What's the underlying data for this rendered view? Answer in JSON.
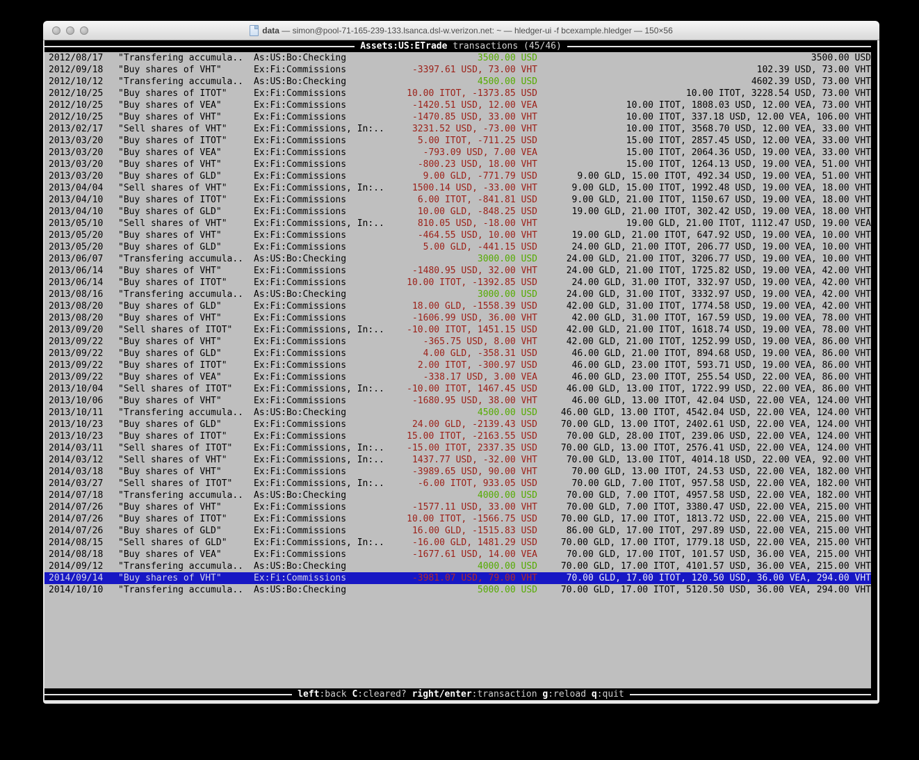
{
  "window": {
    "title_name": "data",
    "title_rest": " — simon@pool-71-165-239-133.lsanca.dsl-w.verizon.net: ~ — hledger-ui -f bcexample.hledger — 150×56"
  },
  "header": {
    "account": "Assets:US:ETrade",
    "rest": "transactions (45/46)"
  },
  "footer": {
    "keys": [
      {
        "key": "left",
        "desc": ":back "
      },
      {
        "key": "C",
        "desc": ":cleared? "
      },
      {
        "key": "right/enter",
        "desc": ":transaction "
      },
      {
        "key": "g",
        "desc": ":reload "
      },
      {
        "key": "q",
        "desc": ":quit"
      }
    ]
  },
  "colors": {
    "terminal_bg": "#bfbfbf",
    "bar_bg": "#000000",
    "amount_negative": "#9c2119",
    "amount_positive": "#55ab00",
    "selected_bg": "#1717c4",
    "desktop_bg": "#000000"
  },
  "transactions": [
    {
      "date": "2012/08/17",
      "desc": "\"Transfering accumula..",
      "acct": "As:US:Bo:Checking",
      "amt": "3500.00 USD",
      "amt_color": "green",
      "bal": "3500.00 USD",
      "selected": false
    },
    {
      "date": "2012/09/18",
      "desc": "\"Buy shares of VHT\"",
      "acct": "Ex:Fi:Commissions",
      "amt": "-3397.61 USD, 73.00 VHT",
      "amt_color": "red",
      "bal": "102.39 USD, 73.00 VHT",
      "selected": false
    },
    {
      "date": "2012/10/12",
      "desc": "\"Transfering accumula..",
      "acct": "As:US:Bo:Checking",
      "amt": "4500.00 USD",
      "amt_color": "green",
      "bal": "4602.39 USD, 73.00 VHT",
      "selected": false
    },
    {
      "date": "2012/10/25",
      "desc": "\"Buy shares of ITOT\"",
      "acct": "Ex:Fi:Commissions",
      "amt": "10.00 ITOT, -1373.85 USD",
      "amt_color": "red",
      "bal": "10.00 ITOT, 3228.54 USD, 73.00 VHT",
      "selected": false
    },
    {
      "date": "2012/10/25",
      "desc": "\"Buy shares of VEA\"",
      "acct": "Ex:Fi:Commissions",
      "amt": "-1420.51 USD, 12.00 VEA",
      "amt_color": "red",
      "bal": "10.00 ITOT, 1808.03 USD, 12.00 VEA, 73.00 VHT",
      "selected": false
    },
    {
      "date": "2012/10/25",
      "desc": "\"Buy shares of VHT\"",
      "acct": "Ex:Fi:Commissions",
      "amt": "-1470.85 USD, 33.00 VHT",
      "amt_color": "red",
      "bal": "10.00 ITOT, 337.18 USD, 12.00 VEA, 106.00 VHT",
      "selected": false
    },
    {
      "date": "2013/02/17",
      "desc": "\"Sell shares of VHT\"",
      "acct": "Ex:Fi:Commissions, In:..",
      "amt": "3231.52 USD, -73.00 VHT",
      "amt_color": "red",
      "bal": "10.00 ITOT, 3568.70 USD, 12.00 VEA, 33.00 VHT",
      "selected": false
    },
    {
      "date": "2013/03/20",
      "desc": "\"Buy shares of ITOT\"",
      "acct": "Ex:Fi:Commissions",
      "amt": "5.00 ITOT, -711.25 USD",
      "amt_color": "red",
      "bal": "15.00 ITOT, 2857.45 USD, 12.00 VEA, 33.00 VHT",
      "selected": false
    },
    {
      "date": "2013/03/20",
      "desc": "\"Buy shares of VEA\"",
      "acct": "Ex:Fi:Commissions",
      "amt": "-793.09 USD, 7.00 VEA",
      "amt_color": "red",
      "bal": "15.00 ITOT, 2064.36 USD, 19.00 VEA, 33.00 VHT",
      "selected": false
    },
    {
      "date": "2013/03/20",
      "desc": "\"Buy shares of VHT\"",
      "acct": "Ex:Fi:Commissions",
      "amt": "-800.23 USD, 18.00 VHT",
      "amt_color": "red",
      "bal": "15.00 ITOT, 1264.13 USD, 19.00 VEA, 51.00 VHT",
      "selected": false
    },
    {
      "date": "2013/03/20",
      "desc": "\"Buy shares of GLD\"",
      "acct": "Ex:Fi:Commissions",
      "amt": "9.00 GLD, -771.79 USD",
      "amt_color": "red",
      "bal": "9.00 GLD, 15.00 ITOT, 492.34 USD, 19.00 VEA, 51.00 VHT",
      "selected": false
    },
    {
      "date": "2013/04/04",
      "desc": "\"Sell shares of VHT\"",
      "acct": "Ex:Fi:Commissions, In:..",
      "amt": "1500.14 USD, -33.00 VHT",
      "amt_color": "red",
      "bal": "9.00 GLD, 15.00 ITOT, 1992.48 USD, 19.00 VEA, 18.00 VHT",
      "selected": false
    },
    {
      "date": "2013/04/10",
      "desc": "\"Buy shares of ITOT\"",
      "acct": "Ex:Fi:Commissions",
      "amt": "6.00 ITOT, -841.81 USD",
      "amt_color": "red",
      "bal": "9.00 GLD, 21.00 ITOT, 1150.67 USD, 19.00 VEA, 18.00 VHT",
      "selected": false
    },
    {
      "date": "2013/04/10",
      "desc": "\"Buy shares of GLD\"",
      "acct": "Ex:Fi:Commissions",
      "amt": "10.00 GLD, -848.25 USD",
      "amt_color": "red",
      "bal": "19.00 GLD, 21.00 ITOT, 302.42 USD, 19.00 VEA, 18.00 VHT",
      "selected": false
    },
    {
      "date": "2013/05/10",
      "desc": "\"Sell shares of VHT\"",
      "acct": "Ex:Fi:Commissions, In:..",
      "amt": "810.05 USD, -18.00 VHT",
      "amt_color": "red",
      "bal": "19.00 GLD, 21.00 ITOT, 1112.47 USD, 19.00 VEA",
      "selected": false
    },
    {
      "date": "2013/05/20",
      "desc": "\"Buy shares of VHT\"",
      "acct": "Ex:Fi:Commissions",
      "amt": "-464.55 USD, 10.00 VHT",
      "amt_color": "red",
      "bal": "19.00 GLD, 21.00 ITOT, 647.92 USD, 19.00 VEA, 10.00 VHT",
      "selected": false
    },
    {
      "date": "2013/05/20",
      "desc": "\"Buy shares of GLD\"",
      "acct": "Ex:Fi:Commissions",
      "amt": "5.00 GLD, -441.15 USD",
      "amt_color": "red",
      "bal": "24.00 GLD, 21.00 ITOT, 206.77 USD, 19.00 VEA, 10.00 VHT",
      "selected": false
    },
    {
      "date": "2013/06/07",
      "desc": "\"Transfering accumula..",
      "acct": "As:US:Bo:Checking",
      "amt": "3000.00 USD",
      "amt_color": "green",
      "bal": "24.00 GLD, 21.00 ITOT, 3206.77 USD, 19.00 VEA, 10.00 VHT",
      "selected": false
    },
    {
      "date": "2013/06/14",
      "desc": "\"Buy shares of VHT\"",
      "acct": "Ex:Fi:Commissions",
      "amt": "-1480.95 USD, 32.00 VHT",
      "amt_color": "red",
      "bal": "24.00 GLD, 21.00 ITOT, 1725.82 USD, 19.00 VEA, 42.00 VHT",
      "selected": false
    },
    {
      "date": "2013/06/14",
      "desc": "\"Buy shares of ITOT\"",
      "acct": "Ex:Fi:Commissions",
      "amt": "10.00 ITOT, -1392.85 USD",
      "amt_color": "red",
      "bal": "24.00 GLD, 31.00 ITOT, 332.97 USD, 19.00 VEA, 42.00 VHT",
      "selected": false
    },
    {
      "date": "2013/08/16",
      "desc": "\"Transfering accumula..",
      "acct": "As:US:Bo:Checking",
      "amt": "3000.00 USD",
      "amt_color": "green",
      "bal": "24.00 GLD, 31.00 ITOT, 3332.97 USD, 19.00 VEA, 42.00 VHT",
      "selected": false
    },
    {
      "date": "2013/08/20",
      "desc": "\"Buy shares of GLD\"",
      "acct": "Ex:Fi:Commissions",
      "amt": "18.00 GLD, -1558.39 USD",
      "amt_color": "red",
      "bal": "42.00 GLD, 31.00 ITOT, 1774.58 USD, 19.00 VEA, 42.00 VHT",
      "selected": false
    },
    {
      "date": "2013/08/20",
      "desc": "\"Buy shares of VHT\"",
      "acct": "Ex:Fi:Commissions",
      "amt": "-1606.99 USD, 36.00 VHT",
      "amt_color": "red",
      "bal": "42.00 GLD, 31.00 ITOT, 167.59 USD, 19.00 VEA, 78.00 VHT",
      "selected": false
    },
    {
      "date": "2013/09/20",
      "desc": "\"Sell shares of ITOT\"",
      "acct": "Ex:Fi:Commissions, In:..",
      "amt": "-10.00 ITOT, 1451.15 USD",
      "amt_color": "red",
      "bal": "42.00 GLD, 21.00 ITOT, 1618.74 USD, 19.00 VEA, 78.00 VHT",
      "selected": false
    },
    {
      "date": "2013/09/22",
      "desc": "\"Buy shares of VHT\"",
      "acct": "Ex:Fi:Commissions",
      "amt": "-365.75 USD, 8.00 VHT",
      "amt_color": "red",
      "bal": "42.00 GLD, 21.00 ITOT, 1252.99 USD, 19.00 VEA, 86.00 VHT",
      "selected": false
    },
    {
      "date": "2013/09/22",
      "desc": "\"Buy shares of GLD\"",
      "acct": "Ex:Fi:Commissions",
      "amt": "4.00 GLD, -358.31 USD",
      "amt_color": "red",
      "bal": "46.00 GLD, 21.00 ITOT, 894.68 USD, 19.00 VEA, 86.00 VHT",
      "selected": false
    },
    {
      "date": "2013/09/22",
      "desc": "\"Buy shares of ITOT\"",
      "acct": "Ex:Fi:Commissions",
      "amt": "2.00 ITOT, -300.97 USD",
      "amt_color": "red",
      "bal": "46.00 GLD, 23.00 ITOT, 593.71 USD, 19.00 VEA, 86.00 VHT",
      "selected": false
    },
    {
      "date": "2013/09/22",
      "desc": "\"Buy shares of VEA\"",
      "acct": "Ex:Fi:Commissions",
      "amt": "-338.17 USD, 3.00 VEA",
      "amt_color": "red",
      "bal": "46.00 GLD, 23.00 ITOT, 255.54 USD, 22.00 VEA, 86.00 VHT",
      "selected": false
    },
    {
      "date": "2013/10/04",
      "desc": "\"Sell shares of ITOT\"",
      "acct": "Ex:Fi:Commissions, In:..",
      "amt": "-10.00 ITOT, 1467.45 USD",
      "amt_color": "red",
      "bal": "46.00 GLD, 13.00 ITOT, 1722.99 USD, 22.00 VEA, 86.00 VHT",
      "selected": false
    },
    {
      "date": "2013/10/06",
      "desc": "\"Buy shares of VHT\"",
      "acct": "Ex:Fi:Commissions",
      "amt": "-1680.95 USD, 38.00 VHT",
      "amt_color": "red",
      "bal": "46.00 GLD, 13.00 ITOT, 42.04 USD, 22.00 VEA, 124.00 VHT",
      "selected": false
    },
    {
      "date": "2013/10/11",
      "desc": "\"Transfering accumula..",
      "acct": "As:US:Bo:Checking",
      "amt": "4500.00 USD",
      "amt_color": "green",
      "bal": "46.00 GLD, 13.00 ITOT, 4542.04 USD, 22.00 VEA, 124.00 VHT",
      "selected": false
    },
    {
      "date": "2013/10/23",
      "desc": "\"Buy shares of GLD\"",
      "acct": "Ex:Fi:Commissions",
      "amt": "24.00 GLD, -2139.43 USD",
      "amt_color": "red",
      "bal": "70.00 GLD, 13.00 ITOT, 2402.61 USD, 22.00 VEA, 124.00 VHT",
      "selected": false
    },
    {
      "date": "2013/10/23",
      "desc": "\"Buy shares of ITOT\"",
      "acct": "Ex:Fi:Commissions",
      "amt": "15.00 ITOT, -2163.55 USD",
      "amt_color": "red",
      "bal": "70.00 GLD, 28.00 ITOT, 239.06 USD, 22.00 VEA, 124.00 VHT",
      "selected": false
    },
    {
      "date": "2014/03/11",
      "desc": "\"Sell shares of ITOT\"",
      "acct": "Ex:Fi:Commissions, In:..",
      "amt": "-15.00 ITOT, 2337.35 USD",
      "amt_color": "red",
      "bal": "70.00 GLD, 13.00 ITOT, 2576.41 USD, 22.00 VEA, 124.00 VHT",
      "selected": false
    },
    {
      "date": "2014/03/12",
      "desc": "\"Sell shares of VHT\"",
      "acct": "Ex:Fi:Commissions, In:..",
      "amt": "1437.77 USD, -32.00 VHT",
      "amt_color": "red",
      "bal": "70.00 GLD, 13.00 ITOT, 4014.18 USD, 22.00 VEA, 92.00 VHT",
      "selected": false
    },
    {
      "date": "2014/03/18",
      "desc": "\"Buy shares of VHT\"",
      "acct": "Ex:Fi:Commissions",
      "amt": "-3989.65 USD, 90.00 VHT",
      "amt_color": "red",
      "bal": "70.00 GLD, 13.00 ITOT, 24.53 USD, 22.00 VEA, 182.00 VHT",
      "selected": false
    },
    {
      "date": "2014/03/27",
      "desc": "\"Sell shares of ITOT\"",
      "acct": "Ex:Fi:Commissions, In:..",
      "amt": "-6.00 ITOT, 933.05 USD",
      "amt_color": "red",
      "bal": "70.00 GLD, 7.00 ITOT, 957.58 USD, 22.00 VEA, 182.00 VHT",
      "selected": false
    },
    {
      "date": "2014/07/18",
      "desc": "\"Transfering accumula..",
      "acct": "As:US:Bo:Checking",
      "amt": "4000.00 USD",
      "amt_color": "green",
      "bal": "70.00 GLD, 7.00 ITOT, 4957.58 USD, 22.00 VEA, 182.00 VHT",
      "selected": false
    },
    {
      "date": "2014/07/26",
      "desc": "\"Buy shares of VHT\"",
      "acct": "Ex:Fi:Commissions",
      "amt": "-1577.11 USD, 33.00 VHT",
      "amt_color": "red",
      "bal": "70.00 GLD, 7.00 ITOT, 3380.47 USD, 22.00 VEA, 215.00 VHT",
      "selected": false
    },
    {
      "date": "2014/07/26",
      "desc": "\"Buy shares of ITOT\"",
      "acct": "Ex:Fi:Commissions",
      "amt": "10.00 ITOT, -1566.75 USD",
      "amt_color": "red",
      "bal": "70.00 GLD, 17.00 ITOT, 1813.72 USD, 22.00 VEA, 215.00 VHT",
      "selected": false
    },
    {
      "date": "2014/07/26",
      "desc": "\"Buy shares of GLD\"",
      "acct": "Ex:Fi:Commissions",
      "amt": "16.00 GLD, -1515.83 USD",
      "amt_color": "red",
      "bal": "86.00 GLD, 17.00 ITOT, 297.89 USD, 22.00 VEA, 215.00 VHT",
      "selected": false
    },
    {
      "date": "2014/08/15",
      "desc": "\"Sell shares of GLD\"",
      "acct": "Ex:Fi:Commissions, In:..",
      "amt": "-16.00 GLD, 1481.29 USD",
      "amt_color": "red",
      "bal": "70.00 GLD, 17.00 ITOT, 1779.18 USD, 22.00 VEA, 215.00 VHT",
      "selected": false
    },
    {
      "date": "2014/08/18",
      "desc": "\"Buy shares of VEA\"",
      "acct": "Ex:Fi:Commissions",
      "amt": "-1677.61 USD, 14.00 VEA",
      "amt_color": "red",
      "bal": "70.00 GLD, 17.00 ITOT, 101.57 USD, 36.00 VEA, 215.00 VHT",
      "selected": false
    },
    {
      "date": "2014/09/12",
      "desc": "\"Transfering accumula..",
      "acct": "As:US:Bo:Checking",
      "amt": "4000.00 USD",
      "amt_color": "green",
      "bal": "70.00 GLD, 17.00 ITOT, 4101.57 USD, 36.00 VEA, 215.00 VHT",
      "selected": false
    },
    {
      "date": "2014/09/14",
      "desc": "\"Buy shares of VHT\"",
      "acct": "Ex:Fi:Commissions",
      "amt": "-3981.07 USD, 79.00 VHT",
      "amt_color": "red",
      "bal": "70.00 GLD, 17.00 ITOT, 120.50 USD, 36.00 VEA, 294.00 VHT",
      "selected": true
    },
    {
      "date": "2014/10/10",
      "desc": "\"Transfering accumula..",
      "acct": "As:US:Bo:Checking",
      "amt": "5000.00 USD",
      "amt_color": "green",
      "bal": "70.00 GLD, 17.00 ITOT, 5120.50 USD, 36.00 VEA, 294.00 VHT",
      "selected": false
    }
  ]
}
